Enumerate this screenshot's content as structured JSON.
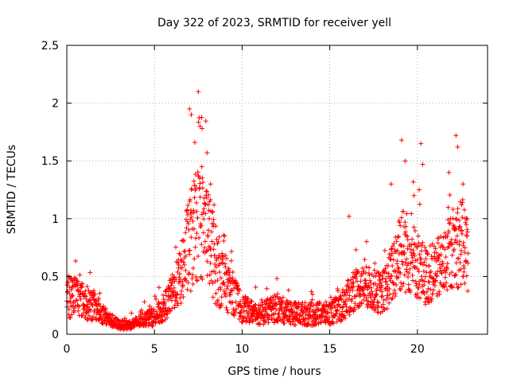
{
  "chart_data": {
    "type": "scatter",
    "title": "Day 322 of 2023, SRMTID for receiver yell",
    "xlabel": "GPS time / hours",
    "ylabel": "SRMTID / TECUs",
    "xlim": [
      0,
      24
    ],
    "ylim": [
      0,
      2.5
    ],
    "x_ticks": [
      0,
      5,
      10,
      15,
      20
    ],
    "x_tick_labels": [
      "0",
      "5",
      "10",
      "15",
      "20"
    ],
    "y_ticks": [
      0,
      0.5,
      1,
      1.5,
      2,
      2.5
    ],
    "y_tick_labels": [
      "0",
      "0.5",
      "1",
      "1.5",
      "2",
      "2.5"
    ],
    "grid": true,
    "marker": "+",
    "color": "#ff0000",
    "series": [
      {
        "name": "yell",
        "envelope": [
          [
            0.0,
            0.3,
            0.18
          ],
          [
            0.5,
            0.35,
            0.18
          ],
          [
            1.0,
            0.28,
            0.15
          ],
          [
            1.5,
            0.25,
            0.14
          ],
          [
            2.0,
            0.18,
            0.09
          ],
          [
            2.5,
            0.12,
            0.06
          ],
          [
            3.0,
            0.08,
            0.04
          ],
          [
            3.5,
            0.08,
            0.04
          ],
          [
            4.0,
            0.1,
            0.05
          ],
          [
            4.5,
            0.14,
            0.07
          ],
          [
            5.0,
            0.15,
            0.08
          ],
          [
            5.5,
            0.22,
            0.12
          ],
          [
            6.0,
            0.35,
            0.16
          ],
          [
            6.5,
            0.5,
            0.25
          ],
          [
            7.0,
            0.8,
            0.45
          ],
          [
            7.5,
            0.95,
            0.5
          ],
          [
            8.0,
            0.9,
            0.45
          ],
          [
            8.5,
            0.6,
            0.35
          ],
          [
            9.0,
            0.45,
            0.25
          ],
          [
            9.5,
            0.35,
            0.18
          ],
          [
            10.0,
            0.22,
            0.12
          ],
          [
            10.5,
            0.2,
            0.1
          ],
          [
            11.0,
            0.18,
            0.1
          ],
          [
            11.5,
            0.2,
            0.11
          ],
          [
            12.0,
            0.22,
            0.12
          ],
          [
            12.5,
            0.2,
            0.11
          ],
          [
            13.0,
            0.18,
            0.1
          ],
          [
            13.5,
            0.18,
            0.1
          ],
          [
            14.0,
            0.17,
            0.1
          ],
          [
            14.5,
            0.18,
            0.1
          ],
          [
            15.0,
            0.18,
            0.1
          ],
          [
            15.5,
            0.22,
            0.12
          ],
          [
            16.0,
            0.3,
            0.16
          ],
          [
            16.5,
            0.4,
            0.18
          ],
          [
            17.0,
            0.42,
            0.18
          ],
          [
            17.5,
            0.38,
            0.18
          ],
          [
            18.0,
            0.35,
            0.18
          ],
          [
            18.5,
            0.5,
            0.25
          ],
          [
            19.0,
            0.75,
            0.4
          ],
          [
            19.5,
            0.7,
            0.35
          ],
          [
            20.0,
            0.6,
            0.3
          ],
          [
            20.5,
            0.5,
            0.25
          ],
          [
            21.0,
            0.55,
            0.25
          ],
          [
            21.5,
            0.6,
            0.3
          ],
          [
            22.0,
            0.75,
            0.35
          ],
          [
            22.5,
            0.8,
            0.4
          ],
          [
            22.9,
            0.7,
            0.35
          ]
        ],
        "peaks": [
          [
            7.0,
            1.95
          ],
          [
            7.1,
            1.9
          ],
          [
            7.5,
            2.1
          ],
          [
            7.6,
            1.8
          ],
          [
            7.3,
            1.66
          ],
          [
            7.7,
            1.45
          ],
          [
            8.0,
            1.57
          ],
          [
            8.2,
            1.3
          ],
          [
            8.4,
            1.12
          ],
          [
            9.0,
            0.85
          ],
          [
            16.1,
            1.02
          ],
          [
            18.5,
            1.3
          ],
          [
            19.1,
            1.68
          ],
          [
            19.3,
            1.5
          ],
          [
            19.8,
            1.2
          ],
          [
            20.1,
            1.25
          ],
          [
            20.2,
            1.65
          ],
          [
            20.3,
            1.47
          ],
          [
            21.8,
            1.4
          ],
          [
            22.2,
            1.72
          ],
          [
            22.3,
            1.62
          ],
          [
            22.6,
            1.3
          ],
          [
            22.8,
            1.0
          ]
        ]
      }
    ]
  }
}
